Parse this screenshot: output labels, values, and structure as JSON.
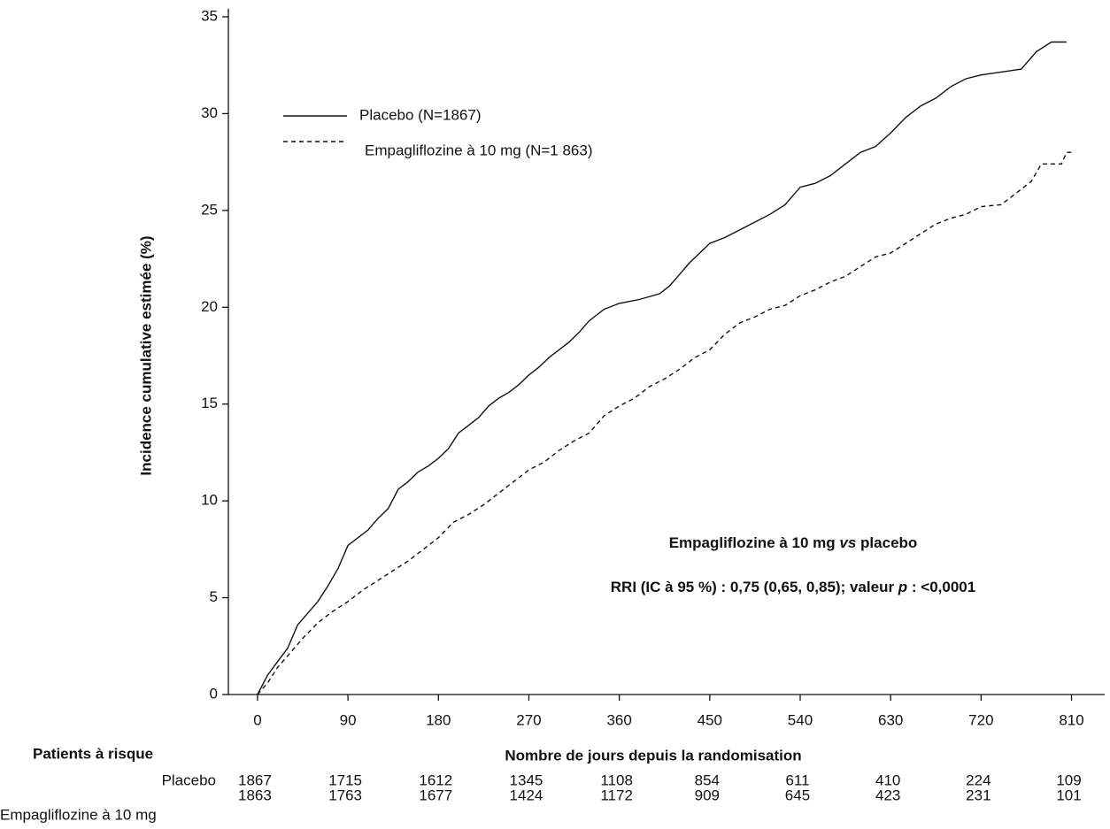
{
  "chart_data": {
    "type": "line",
    "y_label": "Incidence cumulative estimée (%)",
    "x_label": "Nombre de jours depuis la randomisation",
    "xlim": [
      -29,
      843
    ],
    "xticks": [
      0,
      90,
      180,
      270,
      360,
      450,
      540,
      630,
      720,
      810
    ],
    "ylim": [
      0,
      35
    ],
    "yticks": [
      0,
      5,
      10,
      15,
      20,
      25,
      30,
      35
    ],
    "legend": "upper left",
    "series": [
      {
        "name": "Placebo (N=1867)",
        "color": "#111111",
        "dash": "solid",
        "x": [
          0,
          10,
          20,
          30,
          40,
          50,
          60,
          70,
          80,
          90,
          100,
          110,
          120,
          130,
          140,
          150,
          160,
          170,
          180,
          190,
          200,
          210,
          220,
          230,
          240,
          250,
          260,
          270,
          280,
          290,
          300,
          310,
          320,
          330,
          345,
          360,
          380,
          400,
          410,
          420,
          430,
          440,
          450,
          465,
          480,
          495,
          510,
          525,
          540,
          555,
          570,
          585,
          600,
          615,
          630,
          645,
          660,
          675,
          690,
          705,
          720,
          760,
          775,
          790,
          805
        ],
        "values": [
          0,
          1,
          1.7,
          2.4,
          3.6,
          4.2,
          4.8,
          5.6,
          6.5,
          7.7,
          8.1,
          8.5,
          9.1,
          9.6,
          10.6,
          11,
          11.5,
          11.8,
          12.2,
          12.7,
          13.5,
          13.9,
          14.3,
          14.9,
          15.3,
          15.6,
          16,
          16.5,
          16.9,
          17.4,
          17.8,
          18.2,
          18.7,
          19.3,
          19.9,
          20.2,
          20.4,
          20.7,
          21.1,
          21.7,
          22.3,
          22.8,
          23.3,
          23.6,
          24,
          24.4,
          24.8,
          25.3,
          26.2,
          26.4,
          26.8,
          27.4,
          28,
          28.3,
          29,
          29.8,
          30.4,
          30.8,
          31.4,
          31.8,
          32,
          32.3,
          33.2,
          33.7,
          33.7
        ]
      },
      {
        "name": "Empagliflozine à 10 mg (N=1 863)",
        "color": "#111111",
        "dash": "dashed",
        "x": [
          0,
          10,
          20,
          30,
          45,
          60,
          75,
          90,
          105,
          120,
          135,
          150,
          165,
          180,
          195,
          210,
          225,
          240,
          255,
          270,
          285,
          300,
          315,
          330,
          345,
          360,
          375,
          390,
          405,
          420,
          435,
          450,
          465,
          480,
          495,
          510,
          525,
          540,
          555,
          570,
          585,
          600,
          615,
          630,
          645,
          660,
          675,
          690,
          705,
          720,
          740,
          755,
          770,
          780,
          800,
          805,
          810
        ],
        "values": [
          0,
          0.6,
          1.4,
          2,
          2.9,
          3.7,
          4.3,
          4.8,
          5.4,
          5.9,
          6.4,
          6.9,
          7.5,
          8.1,
          8.9,
          9.3,
          9.8,
          10.4,
          11,
          11.6,
          12,
          12.6,
          13.1,
          13.5,
          14.4,
          14.9,
          15.3,
          15.9,
          16.3,
          16.8,
          17.4,
          17.8,
          18.6,
          19.2,
          19.5,
          19.9,
          20.1,
          20.6,
          20.9,
          21.3,
          21.6,
          22.1,
          22.6,
          22.8,
          23.3,
          23.8,
          24.3,
          24.6,
          24.8,
          25.2,
          25.3,
          25.9,
          26.5,
          27.4,
          27.4,
          28,
          28
        ]
      }
    ],
    "annotations": [
      [
        "Empagliflozine à 10 mg ",
        "vs",
        " placebo"
      ],
      [
        "RRI (IC à 95 %) : 0,75 (0,65, 0,85); valeur ",
        "p",
        " : <0,0001"
      ]
    ],
    "risk_table": {
      "title": "Patients à risque",
      "rows": [
        {
          "name": "Placebo",
          "values": [
            1867,
            1715,
            1612,
            1345,
            1108,
            854,
            611,
            410,
            224,
            109
          ]
        },
        {
          "name": "Empagliflozine à 10 mg",
          "values": [
            1863,
            1763,
            1677,
            1424,
            1172,
            909,
            645,
            423,
            231,
            101
          ]
        }
      ]
    }
  }
}
